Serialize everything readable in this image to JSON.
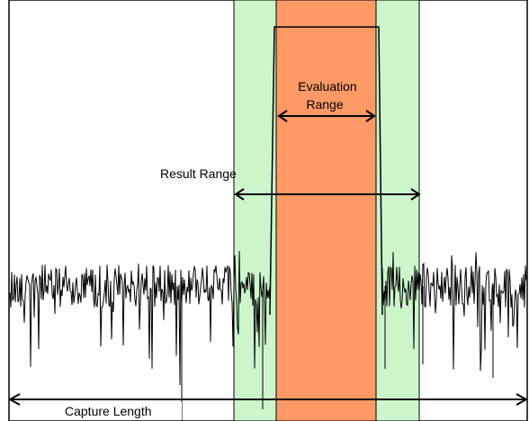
{
  "diagram": {
    "labels": {
      "evaluation_range_line1": "Evaluation",
      "evaluation_range_line2": "Range",
      "result_range": "Result Range",
      "capture_length": "Capture Length"
    },
    "colors": {
      "background": "#ffffff",
      "frame": "#000000",
      "result_range_fill": "#ccf5cc",
      "result_range_border": "#000000",
      "evaluation_range_fill": "#ff9966",
      "signal": "#000000",
      "arrow": "#000000"
    }
  }
}
